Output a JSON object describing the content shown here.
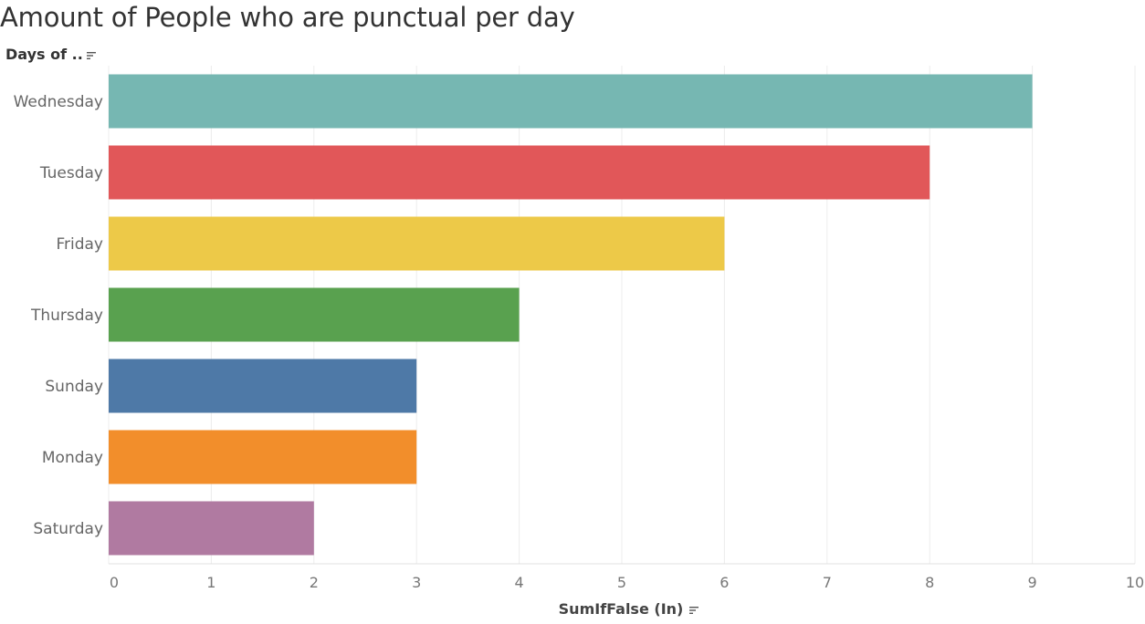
{
  "chart_data": {
    "type": "bar",
    "orientation": "horizontal",
    "title": "Amount of People who are punctual per day",
    "row_header": "Days of ..",
    "xlabel": "SumIfFalse (In)",
    "categories": [
      "Wednesday",
      "Tuesday",
      "Friday",
      "Thursday",
      "Sunday",
      "Monday",
      "Saturday"
    ],
    "values": [
      9,
      8,
      6,
      4,
      3,
      3,
      2
    ],
    "colors": [
      "#76b7b2",
      "#e15759",
      "#edc948",
      "#59a14f",
      "#4e79a7",
      "#f28e2b",
      "#b07aa1"
    ],
    "xlim": [
      0,
      10
    ],
    "xticks": [
      "0",
      "1",
      "2",
      "3",
      "4",
      "5",
      "6",
      "7",
      "8",
      "9",
      "10"
    ],
    "grid": true,
    "sorted": "descending"
  }
}
